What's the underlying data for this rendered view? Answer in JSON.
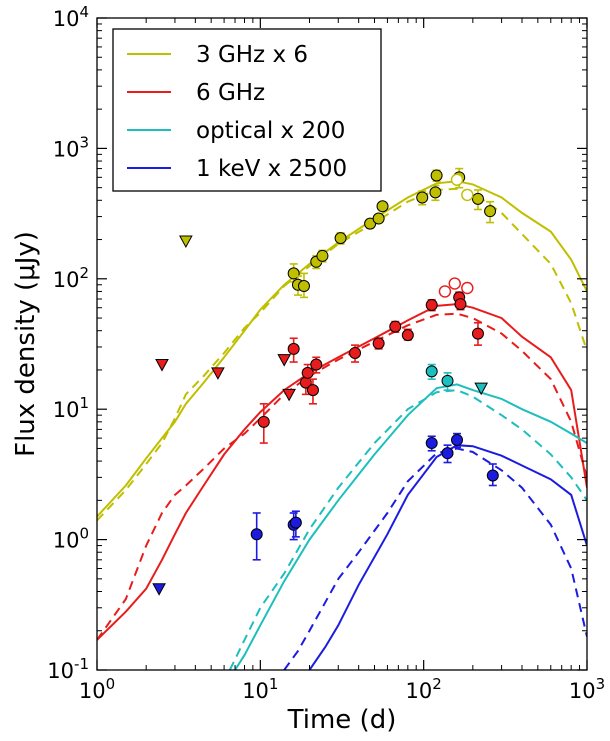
{
  "chart_data": {
    "type": "scatter",
    "title": "",
    "xlabel": "Time (d)",
    "ylabel": "Flux density (μJy)",
    "xscale": "log",
    "yscale": "log",
    "xlim": [
      1,
      1000
    ],
    "ylim": [
      0.1,
      10000
    ],
    "x_ticks": [
      {
        "value": 1,
        "base": "10",
        "exp": "0"
      },
      {
        "value": 10,
        "base": "10",
        "exp": "1"
      },
      {
        "value": 100,
        "base": "10",
        "exp": "2"
      },
      {
        "value": 1000,
        "base": "10",
        "exp": "3"
      }
    ],
    "y_ticks": [
      {
        "value": 0.1,
        "base": "10",
        "exp": "-1"
      },
      {
        "value": 1,
        "base": "10",
        "exp": "0"
      },
      {
        "value": 10,
        "base": "10",
        "exp": "1"
      },
      {
        "value": 100,
        "base": "10",
        "exp": "2"
      },
      {
        "value": 1000,
        "base": "10",
        "exp": "3"
      },
      {
        "value": 10000,
        "base": "10",
        "exp": "4"
      }
    ],
    "grid": false,
    "legend_position": "top-left",
    "series": [
      {
        "name": "3 GHz x 6",
        "color": "#bfbf00",
        "model_solid": [
          [
            1,
            1.5
          ],
          [
            1.5,
            2.6
          ],
          [
            2,
            4.2
          ],
          [
            2.5,
            6
          ],
          [
            3,
            8
          ],
          [
            3.5,
            11
          ],
          [
            4.5,
            16
          ],
          [
            6,
            25
          ],
          [
            8,
            40
          ],
          [
            10,
            58
          ],
          [
            14,
            90
          ],
          [
            20,
            130
          ],
          [
            30,
            190
          ],
          [
            50,
            290
          ],
          [
            80,
            420
          ],
          [
            120,
            540
          ],
          [
            160,
            560
          ],
          [
            200,
            530
          ],
          [
            300,
            420
          ],
          [
            400,
            320
          ],
          [
            600,
            230
          ],
          [
            800,
            140
          ],
          [
            1000,
            80
          ]
        ],
        "model_dashed": [
          [
            1,
            1.4
          ],
          [
            1.5,
            2.4
          ],
          [
            2,
            3.8
          ],
          [
            2.5,
            5.5
          ],
          [
            3,
            8.5
          ],
          [
            3.5,
            13
          ],
          [
            4.5,
            18
          ],
          [
            6,
            27
          ],
          [
            8,
            42
          ],
          [
            10,
            55
          ],
          [
            14,
            88
          ],
          [
            20,
            125
          ],
          [
            30,
            185
          ],
          [
            50,
            270
          ],
          [
            80,
            390
          ],
          [
            120,
            480
          ],
          [
            160,
            490
          ],
          [
            200,
            460
          ],
          [
            300,
            320
          ],
          [
            400,
            220
          ],
          [
            600,
            130
          ],
          [
            800,
            65
          ],
          [
            1000,
            28
          ]
        ],
        "points": [
          {
            "x": 16,
            "y": 110,
            "err": [
              95,
              130
            ]
          },
          {
            "x": 17,
            "y": 90,
            "err": [
              75,
              105
            ]
          },
          {
            "x": 18.5,
            "y": 88,
            "err": [
              72,
              110
            ]
          },
          {
            "x": 22,
            "y": 135,
            "err": [
              120,
              150
            ]
          },
          {
            "x": 24,
            "y": 150,
            "err": [
              135,
              165
            ]
          },
          {
            "x": 31,
            "y": 205,
            "err": [
              185,
              225
            ]
          },
          {
            "x": 47,
            "y": 265,
            "err": [
              245,
              285
            ]
          },
          {
            "x": 53,
            "y": 290,
            "err": [
              270,
              310
            ]
          },
          {
            "x": 56,
            "y": 360,
            "err": [
              335,
              385
            ]
          },
          {
            "x": 98,
            "y": 420,
            "err": [
              370,
              470
            ]
          },
          {
            "x": 118,
            "y": 460,
            "err": [
              400,
              520
            ]
          },
          {
            "x": 120,
            "y": 620,
            "err": [
              560,
              680
            ]
          },
          {
            "x": 165,
            "y": 600,
            "err": [
              500,
              700
            ]
          },
          {
            "x": 215,
            "y": 410,
            "err": [
              340,
              480
            ]
          },
          {
            "x": 255,
            "y": 330,
            "err": [
              270,
              390
            ]
          }
        ],
        "open_points": [
          {
            "x": 160,
            "y": 575
          },
          {
            "x": 185,
            "y": 440
          }
        ],
        "upper_limits": [
          {
            "x": 3.5,
            "y": 195
          }
        ]
      },
      {
        "name": "6 GHz",
        "color": "#e81c1c",
        "model_solid": [
          [
            1,
            0.17
          ],
          [
            1.5,
            0.28
          ],
          [
            2,
            0.42
          ],
          [
            2.5,
            0.7
          ],
          [
            3,
            1.1
          ],
          [
            3.5,
            1.6
          ],
          [
            4.5,
            2.6
          ],
          [
            6,
            4.5
          ],
          [
            8,
            7
          ],
          [
            10,
            9.5
          ],
          [
            14,
            14
          ],
          [
            20,
            19
          ],
          [
            30,
            25
          ],
          [
            50,
            35
          ],
          [
            80,
            48
          ],
          [
            120,
            62
          ],
          [
            160,
            64
          ],
          [
            200,
            60
          ],
          [
            300,
            50
          ],
          [
            400,
            36
          ],
          [
            600,
            25
          ],
          [
            800,
            14
          ],
          [
            1000,
            2.5
          ]
        ],
        "model_dashed": [
          [
            1,
            0.17
          ],
          [
            1.5,
            0.35
          ],
          [
            2,
            0.9
          ],
          [
            2.5,
            1.6
          ],
          [
            3,
            2.2
          ],
          [
            3.5,
            2.6
          ],
          [
            4.5,
            3.5
          ],
          [
            6,
            5
          ],
          [
            8,
            6.5
          ],
          [
            10,
            8.5
          ],
          [
            14,
            13
          ],
          [
            20,
            18
          ],
          [
            30,
            24
          ],
          [
            50,
            33
          ],
          [
            80,
            44
          ],
          [
            120,
            53
          ],
          [
            160,
            54
          ],
          [
            200,
            50
          ],
          [
            300,
            38
          ],
          [
            400,
            28
          ],
          [
            600,
            17
          ],
          [
            800,
            8
          ],
          [
            1000,
            3
          ]
        ],
        "points": [
          {
            "x": 10.5,
            "y": 8,
            "err": [
              5.5,
              11
            ]
          },
          {
            "x": 16,
            "y": 29,
            "err": [
              23,
              35
            ]
          },
          {
            "x": 19,
            "y": 16,
            "err": [
              13,
              19
            ]
          },
          {
            "x": 19.5,
            "y": 19,
            "err": [
              16,
              22
            ]
          },
          {
            "x": 21,
            "y": 14,
            "err": [
              11,
              17
            ]
          },
          {
            "x": 22,
            "y": 22,
            "err": [
              19,
              25
            ]
          },
          {
            "x": 38,
            "y": 27,
            "err": [
              23,
              31
            ]
          },
          {
            "x": 53,
            "y": 32,
            "err": [
              29,
              35
            ]
          },
          {
            "x": 67,
            "y": 43,
            "err": [
              39,
              47
            ]
          },
          {
            "x": 80,
            "y": 37,
            "err": [
              34,
              41
            ]
          },
          {
            "x": 112,
            "y": 63,
            "err": [
              57,
              69
            ]
          },
          {
            "x": 165,
            "y": 72,
            "err": [
              65,
              79
            ]
          },
          {
            "x": 168,
            "y": 64,
            "err": [
              58,
              70
            ]
          },
          {
            "x": 215,
            "y": 38,
            "err": [
              31,
              46
            ]
          }
        ],
        "open_points": [
          {
            "x": 135,
            "y": 80
          },
          {
            "x": 155,
            "y": 92
          },
          {
            "x": 185,
            "y": 85
          }
        ],
        "upper_limits": [
          {
            "x": 2.5,
            "y": 22
          },
          {
            "x": 5.5,
            "y": 19
          },
          {
            "x": 14,
            "y": 24
          },
          {
            "x": 15,
            "y": 13
          }
        ]
      },
      {
        "name": "optical x 200",
        "color": "#1ebebe",
        "model_solid": [
          [
            7,
            0.1
          ],
          [
            8,
            0.13
          ],
          [
            10,
            0.22
          ],
          [
            14,
            0.48
          ],
          [
            20,
            1
          ],
          [
            30,
            2
          ],
          [
            50,
            4.5
          ],
          [
            80,
            9
          ],
          [
            120,
            14.5
          ],
          [
            160,
            15.5
          ],
          [
            200,
            14
          ],
          [
            300,
            12
          ],
          [
            400,
            10
          ],
          [
            600,
            8
          ],
          [
            800,
            6.5
          ],
          [
            1000,
            5.5
          ]
        ],
        "model_dashed": [
          [
            6.5,
            0.1
          ],
          [
            8,
            0.17
          ],
          [
            10,
            0.3
          ],
          [
            14,
            0.55
          ],
          [
            20,
            1.2
          ],
          [
            30,
            2.5
          ],
          [
            50,
            5.5
          ],
          [
            80,
            10
          ],
          [
            120,
            13.5
          ],
          [
            160,
            14
          ],
          [
            200,
            12.5
          ],
          [
            300,
            9
          ],
          [
            400,
            7
          ],
          [
            600,
            4.5
          ],
          [
            800,
            3
          ],
          [
            1000,
            2
          ]
        ],
        "points": [
          {
            "x": 112,
            "y": 19.5,
            "err": [
              17,
              22
            ]
          },
          {
            "x": 140,
            "y": 16.5,
            "err": [
              14,
              19
            ]
          }
        ],
        "open_points": [],
        "upper_limits": [
          {
            "x": 225,
            "y": 14.5
          }
        ]
      },
      {
        "name": "1 keV x 2500",
        "color": "#1c1ce0",
        "model_solid": [
          [
            20,
            0.1
          ],
          [
            25,
            0.15
          ],
          [
            30,
            0.22
          ],
          [
            40,
            0.45
          ],
          [
            60,
            1.1
          ],
          [
            80,
            2.2
          ],
          [
            120,
            4.3
          ],
          [
            160,
            5.3
          ],
          [
            200,
            5.2
          ],
          [
            300,
            4.4
          ],
          [
            400,
            3.7
          ],
          [
            600,
            2.9
          ],
          [
            800,
            2.2
          ],
          [
            1000,
            0.9
          ]
        ],
        "model_dashed": [
          [
            14,
            0.1
          ],
          [
            17,
            0.14
          ],
          [
            20,
            0.2
          ],
          [
            30,
            0.5
          ],
          [
            40,
            0.8
          ],
          [
            60,
            1.6
          ],
          [
            80,
            2.8
          ],
          [
            120,
            4.6
          ],
          [
            160,
            5
          ],
          [
            200,
            4.7
          ],
          [
            300,
            3.4
          ],
          [
            400,
            2.5
          ],
          [
            600,
            1.3
          ],
          [
            800,
            0.6
          ],
          [
            1000,
            0.18
          ]
        ],
        "points": [
          {
            "x": 9.5,
            "y": 1.1,
            "err": [
              0.7,
              1.6
            ]
          },
          {
            "x": 16,
            "y": 1.3,
            "err": [
              1.0,
              1.6
            ]
          },
          {
            "x": 16.5,
            "y": 1.35,
            "err": [
              1.05,
              1.65
            ]
          },
          {
            "x": 112,
            "y": 5.5,
            "err": [
              4.8,
              6.2
            ]
          },
          {
            "x": 140,
            "y": 4.6,
            "err": [
              3.9,
              5.3
            ]
          },
          {
            "x": 160,
            "y": 5.8,
            "err": [
              5.1,
              6.5
            ]
          },
          {
            "x": 265,
            "y": 3.1,
            "err": [
              2.6,
              3.8
            ]
          }
        ],
        "open_points": [],
        "upper_limits": [
          {
            "x": 2.4,
            "y": 0.42
          }
        ]
      }
    ]
  }
}
